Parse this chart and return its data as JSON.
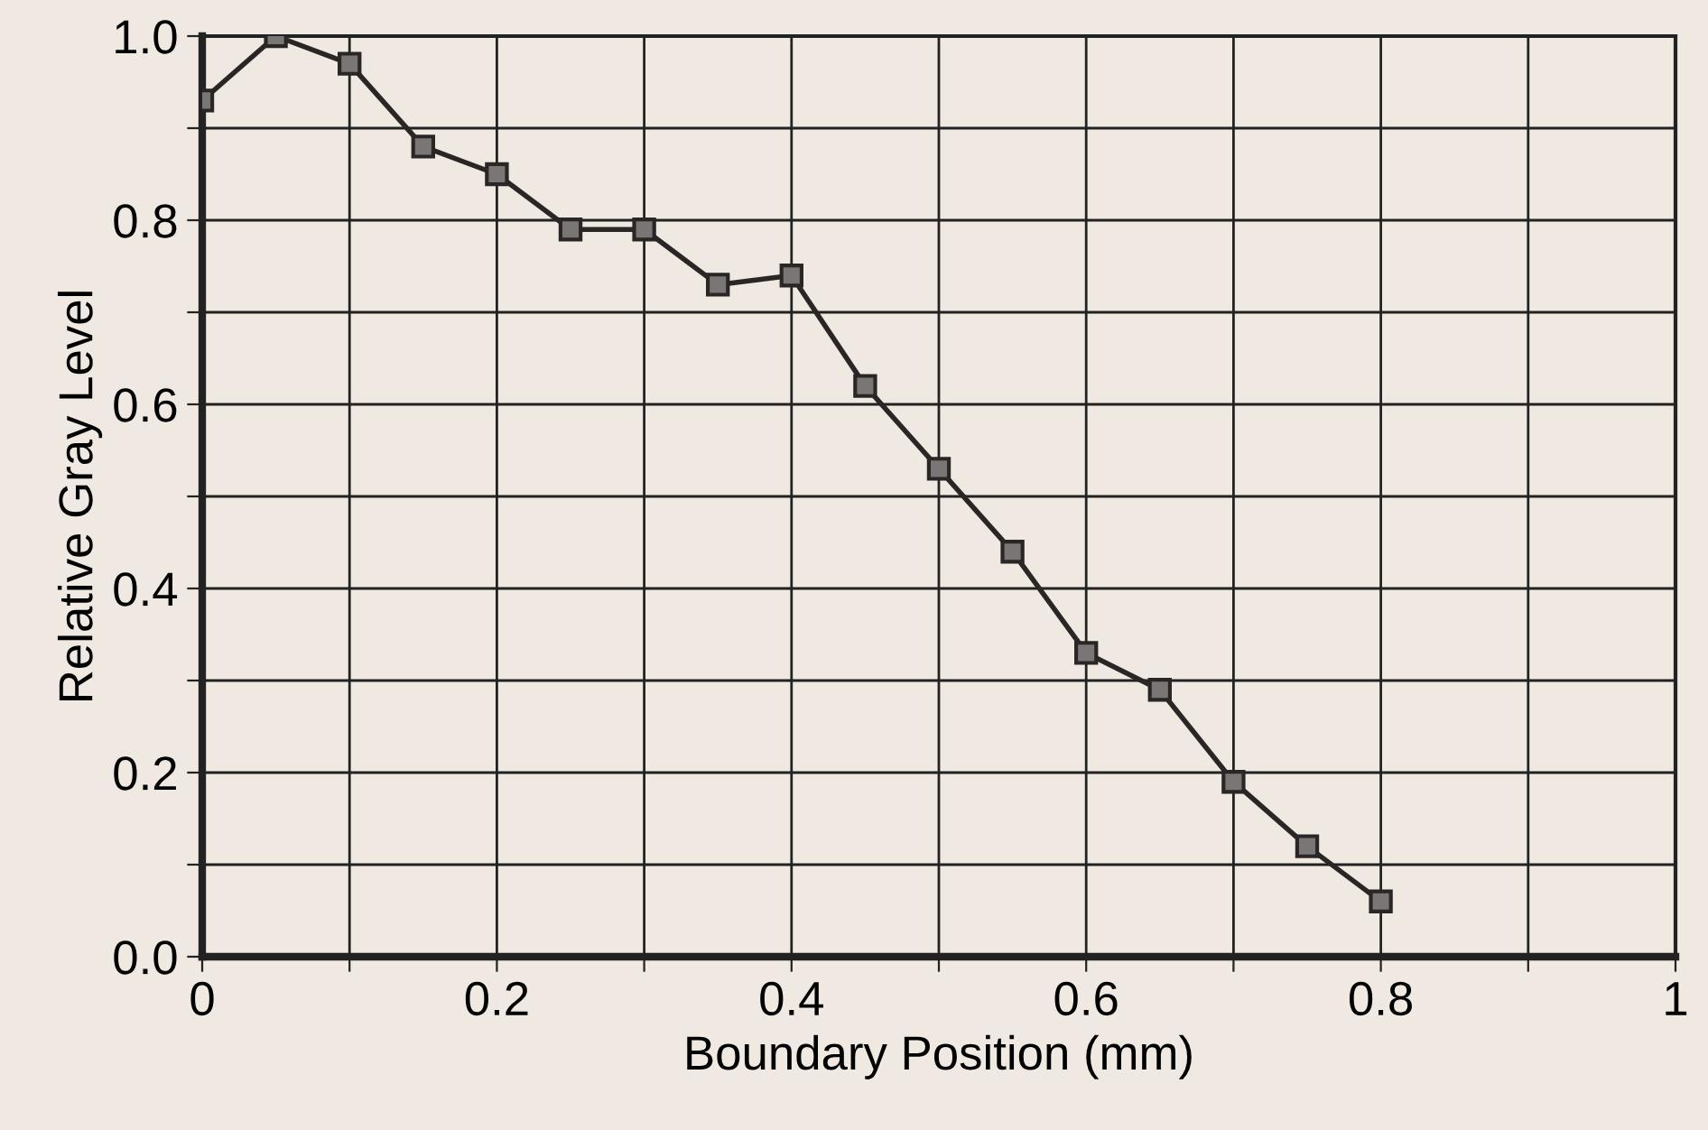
{
  "chart_data": {
    "type": "line",
    "xlabel": "Boundary Position (mm)",
    "ylabel": "Relative Gray Level",
    "x": [
      0,
      0.05,
      0.1,
      0.15,
      0.2,
      0.25,
      0.3,
      0.35,
      0.4,
      0.45,
      0.5,
      0.55,
      0.6,
      0.65,
      0.7,
      0.75,
      0.8
    ],
    "series": [
      {
        "color": "#2a2626",
        "values": [
          0.93,
          1.0,
          0.97,
          0.88,
          0.85,
          0.79,
          0.79,
          0.73,
          0.74,
          0.62,
          0.53,
          0.44,
          0.33,
          0.29,
          0.19,
          0.12,
          0.06
        ]
      }
    ],
    "xlim": [
      0,
      1
    ],
    "ylim": [
      0,
      1
    ],
    "xticks": [
      {
        "value": 0,
        "label": "0"
      },
      {
        "value": 0.1,
        "label": null
      },
      0.2,
      {
        "value": 0.3,
        "label": null
      },
      0.4,
      {
        "value": 0.5,
        "label": null
      },
      0.6,
      {
        "value": 0.7,
        "label": null
      },
      0.8,
      {
        "value": 0.9,
        "label": null
      },
      {
        "value": 1,
        "label": "1"
      }
    ],
    "yticks": [
      {
        "value": 0,
        "label": "0.0"
      },
      {
        "value": 0.1,
        "label": null
      },
      0.2,
      {
        "value": 0.3,
        "label": null
      },
      0.4,
      {
        "value": 0.5,
        "label": null
      },
      0.6,
      {
        "value": 0.7,
        "label": null
      },
      0.8,
      {
        "value": 0.9,
        "label": null
      },
      {
        "value": 1,
        "label": "1.0"
      }
    ],
    "grid": true,
    "marker": "square",
    "line_style": "solid"
  }
}
